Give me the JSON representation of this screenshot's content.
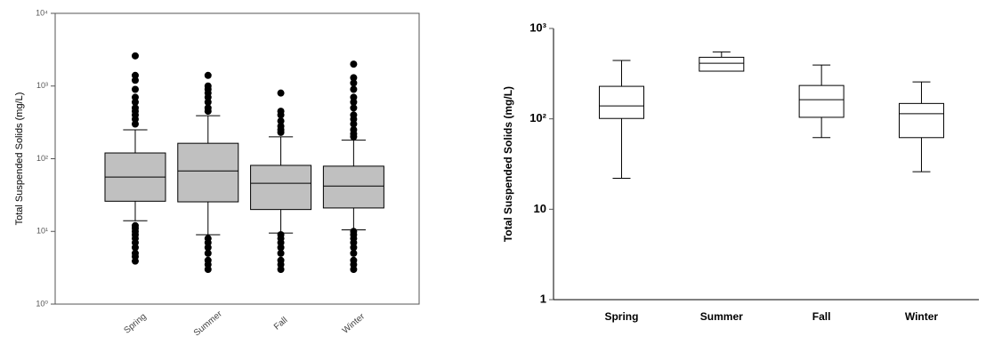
{
  "chart_data": [
    {
      "type": "box",
      "y_label": "Total Suspended Solids (mg/L)",
      "log_scale": true,
      "frame": true,
      "color": "#c0c0c0",
      "ylim": [
        1,
        10000
      ],
      "yticks": [
        {
          "value": 1,
          "label": "10⁰"
        },
        {
          "value": 10,
          "label": "10¹"
        },
        {
          "value": 100,
          "label": "10²"
        },
        {
          "value": 1000,
          "label": "10³"
        },
        {
          "value": 10000,
          "label": "10⁴"
        }
      ],
      "categories": [
        "Spring",
        "Summer",
        "Fall",
        "Winter"
      ],
      "whisker_low": [
        14,
        9,
        9.5,
        10.5
      ],
      "q1": [
        26,
        25.5,
        20,
        21
      ],
      "median": [
        56,
        68,
        46,
        42
      ],
      "q3": [
        120,
        163,
        81,
        79
      ],
      "whisker_high": [
        250,
        390,
        200,
        180
      ],
      "outliers": [
        [
          2600,
          1400,
          1200,
          900,
          700,
          600,
          500,
          450,
          400,
          350,
          300,
          12,
          11,
          10,
          9,
          8,
          7,
          6,
          5,
          4.5,
          3.9
        ],
        [
          1400,
          1000,
          900,
          800,
          700,
          600,
          500,
          450,
          8,
          7,
          6,
          5,
          4,
          3.5,
          3
        ],
        [
          800,
          450,
          400,
          330,
          280,
          250,
          230,
          9,
          8,
          7,
          6,
          5,
          4,
          3.5,
          3
        ],
        [
          2000,
          1300,
          1100,
          900,
          700,
          600,
          500,
          400,
          350,
          300,
          250,
          220,
          200,
          10,
          9,
          8,
          7,
          6,
          5,
          4,
          3.5,
          3
        ]
      ]
    },
    {
      "type": "box",
      "y_label": "Total Suspended Solids (mg/L)",
      "log_scale": true,
      "frame": false,
      "color": "#ffffff",
      "ylim": [
        1,
        1000
      ],
      "yticks": [
        1,
        10,
        {
          "value": 100,
          "label": "10²"
        },
        {
          "value": 1000,
          "label": "10³"
        }
      ],
      "categories": [
        "Spring",
        "Summer",
        "Fall",
        "Winter"
      ],
      "whisker_low": [
        22,
        337,
        62,
        26
      ],
      "q1": [
        101,
        337,
        104,
        62
      ],
      "median": [
        139,
        412,
        163,
        114
      ],
      "q3": [
        229,
        480,
        234,
        148
      ],
      "whisker_high": [
        442,
        550,
        394,
        256
      ],
      "outliers": [
        [],
        [],
        [],
        []
      ]
    }
  ]
}
